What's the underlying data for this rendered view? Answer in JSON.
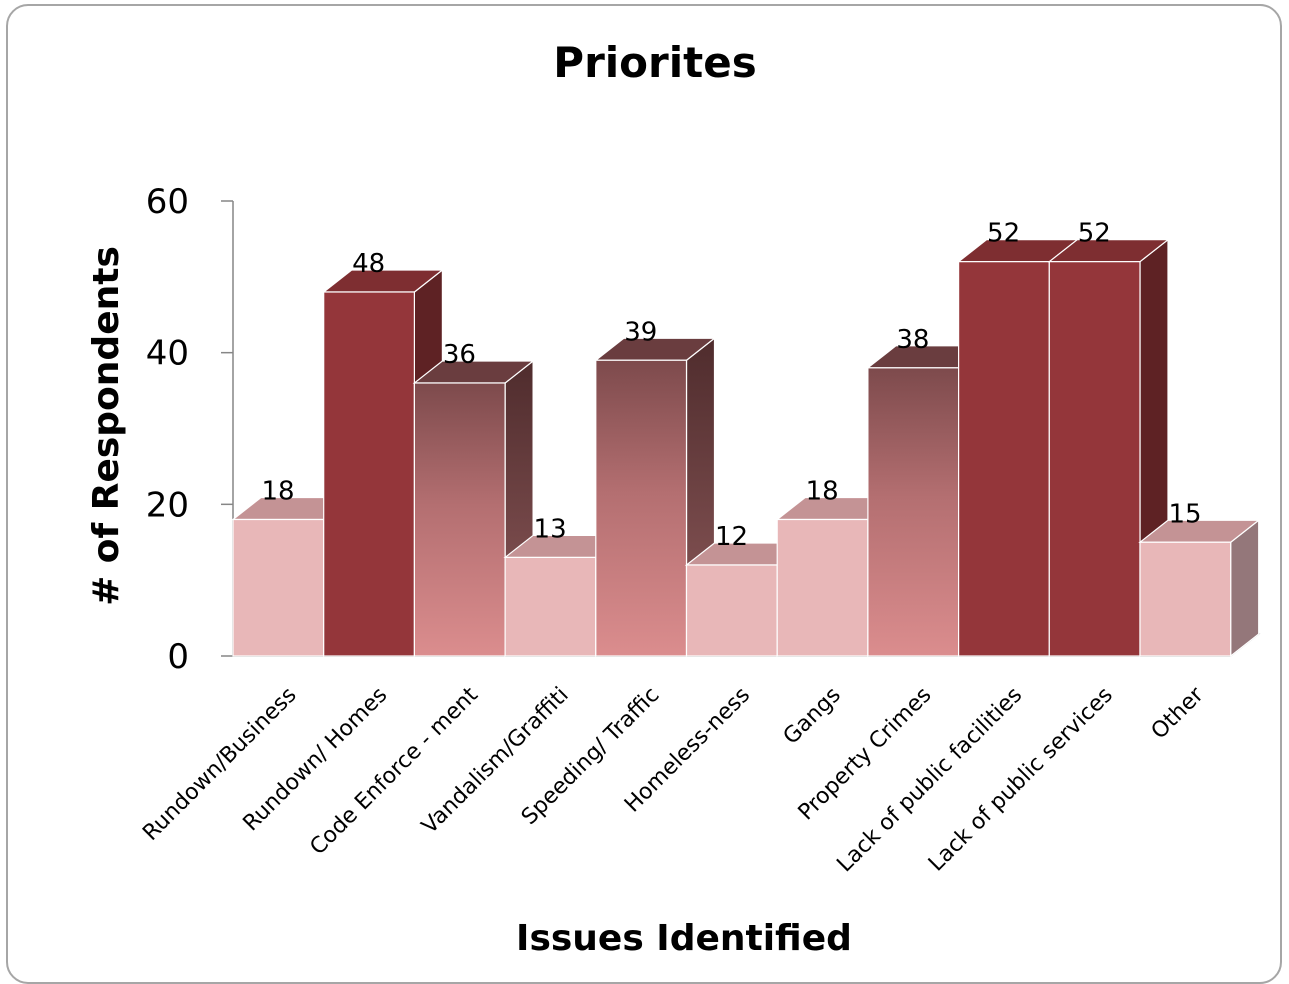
{
  "chart_data": {
    "type": "bar",
    "title": "Priorites",
    "xlabel": "Issues Identified",
    "ylabel": "# of Respondents",
    "ylim": [
      0,
      60
    ],
    "yticks": [
      0,
      20,
      40,
      60
    ],
    "categories": [
      "Rundown/Business",
      "Rundown/ Homes",
      "Code Enforce - ment",
      "Vandalism/Graffiti",
      "Speeding/ Traffic",
      "Homeless-ness",
      "Gangs",
      "Property Crimes",
      "Lack of public facilities",
      "Lack of public services",
      "Other"
    ],
    "values": [
      18,
      48,
      36,
      13,
      39,
      12,
      18,
      38,
      52,
      52,
      15
    ],
    "data_labels": true,
    "legend": "none",
    "grid": false,
    "colors": {
      "light": "#e8b7b8",
      "dark": "#94363a",
      "gradient_top": "#7d4a4c",
      "gradient_bottom": "#db8d8e"
    },
    "bar_styles": [
      "light",
      "dark",
      "gradient",
      "light",
      "gradient",
      "light",
      "light",
      "gradient",
      "dark",
      "dark",
      "light"
    ]
  }
}
